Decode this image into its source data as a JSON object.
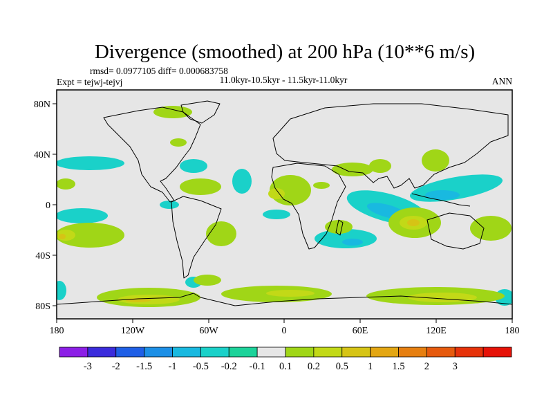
{
  "figure": {
    "title": "Divergence (smoothed) at 200 hPa (10**6 m/s)",
    "stats": "rmsd= 0.0977105 diff= 0.000683758",
    "experiment": "Expt = tejwj-tejvj",
    "period": "11.0kyr-10.5kyr - 11.5kyr-11.0kyr",
    "season": "ANN"
  },
  "map": {
    "ocean_color": "#e6e6e6",
    "coast_color": "#000000",
    "x_ticks": [
      "180",
      "120W",
      "60W",
      "0",
      "60E",
      "120E",
      "180"
    ],
    "y_ticks": [
      "80N",
      "40N",
      "0",
      "40S",
      "80S"
    ]
  },
  "colorbar": {
    "colors": [
      "#8c1fe6",
      "#3b2cdc",
      "#1f5fe6",
      "#1c8fe6",
      "#19b9e0",
      "#1ad1c9",
      "#1cd39a",
      "#e6e6e6",
      "#a0d617",
      "#c2d917",
      "#d6c415",
      "#e3a612",
      "#e67f10",
      "#e65a0d",
      "#e6320a",
      "#e61208"
    ],
    "labels": [
      "-3",
      "-2",
      "-1.5",
      "-1",
      "-0.5",
      "-0.2",
      "-0.1",
      "0.1",
      "0.2",
      "0.5",
      "1",
      "1.5",
      "2",
      "3"
    ]
  }
}
